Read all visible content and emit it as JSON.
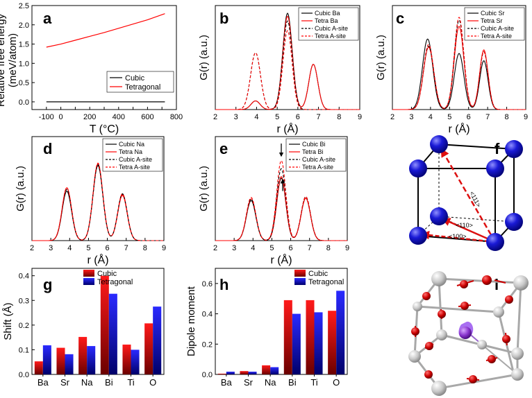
{
  "chart_data": [
    {
      "panel": "a",
      "type": "line",
      "xlabel": "T (°C)",
      "ylabel": "Relative free energy (meV/atom)",
      "ylabel_lines": [
        "Relative free energy",
        "(meV/atom)"
      ],
      "xlim": [
        -200,
        800
      ],
      "ylim": [
        -0.2,
        2.5
      ],
      "xticks": [
        -200,
        -100,
        0,
        100,
        200,
        300,
        400,
        500,
        600,
        700,
        800
      ],
      "xtick_labels": [
        "",
        "-100",
        "0",
        "200",
        "400",
        "600",
        "800"
      ],
      "xtick_label_values": [
        -200,
        -100,
        0,
        200,
        400,
        600,
        800
      ],
      "yticks": [
        0.0,
        0.5,
        1.0,
        1.5,
        2.0,
        2.5
      ],
      "ytick_labels": [
        "0.0",
        "0.5",
        "1.0",
        "1.5",
        "2.0",
        "2.5"
      ],
      "legend_position": "bottom-right",
      "series": [
        {
          "name": "Cubic",
          "color": "#000000",
          "dash": "solid",
          "x": [
            -100,
            0,
            100,
            200,
            300,
            400,
            500,
            600,
            720
          ],
          "y": [
            0,
            0,
            0,
            0,
            0,
            0,
            0,
            0,
            0
          ]
        },
        {
          "name": "Tetragonal",
          "color": "#ff0000",
          "dash": "solid",
          "x": [
            -100,
            0,
            100,
            200,
            300,
            400,
            500,
            600,
            720
          ],
          "y": [
            1.42,
            1.5,
            1.6,
            1.7,
            1.8,
            1.91,
            2.02,
            2.13,
            2.29
          ]
        }
      ]
    },
    {
      "panel": "b",
      "type": "line",
      "xlabel": "r (Å)",
      "ylabel": "G(r) (a.u.)",
      "xlim": [
        2,
        9
      ],
      "ylim": [
        0,
        1.08
      ],
      "xticks": [
        2,
        3,
        4,
        5,
        6,
        7,
        8,
        9
      ],
      "legend_position": "top-right",
      "series": [
        {
          "name": "Cubic Ba",
          "color": "#000000",
          "dash": "solid",
          "peaks": [
            [
              3.95,
              0.09,
              0.22
            ],
            [
              5.5,
              1.0,
              0.23
            ],
            [
              6.75,
              0.47,
              0.22
            ]
          ]
        },
        {
          "name": "Tetra Ba",
          "color": "#ff0000",
          "dash": "solid",
          "peaks": [
            [
              3.95,
              0.09,
              0.22
            ],
            [
              5.5,
              0.97,
              0.23
            ],
            [
              6.75,
              0.47,
              0.22
            ]
          ]
        },
        {
          "name": "Cubic A-site",
          "color": "#000000",
          "dash": "dashed",
          "peaks": [
            [
              3.95,
              0.59,
              0.24
            ],
            [
              5.5,
              0.92,
              0.23
            ]
          ]
        },
        {
          "name": "Tetra A-site",
          "color": "#ff0000",
          "dash": "dashed",
          "peaks": [
            [
              3.95,
              0.59,
              0.24
            ],
            [
              5.5,
              0.82,
              0.22
            ]
          ]
        }
      ]
    },
    {
      "panel": "c",
      "type": "line",
      "xlabel": "r (Å)",
      "ylabel": "G(r) (a.u.)",
      "xlim": [
        2,
        9
      ],
      "ylim": [
        0,
        1.15
      ],
      "xticks": [
        2,
        3,
        4,
        5,
        6,
        7,
        8,
        9
      ],
      "legend_position": "top-right",
      "series": [
        {
          "name": "Cubic Sr",
          "color": "#000000",
          "dash": "solid",
          "peaks": [
            [
              3.85,
              0.78,
              0.27
            ],
            [
              5.5,
              0.62,
              0.25
            ],
            [
              6.8,
              0.54,
              0.22
            ]
          ]
        },
        {
          "name": "Tetra Sr",
          "color": "#ff0000",
          "dash": "solid",
          "peaks": [
            [
              3.9,
              0.69,
              0.27
            ],
            [
              5.5,
              0.92,
              0.25
            ],
            [
              6.8,
              0.66,
              0.22
            ]
          ]
        },
        {
          "name": "Cubic A-site",
          "color": "#000000",
          "dash": "dashed",
          "peaks": [
            [
              3.9,
              0.7,
              0.27
            ],
            [
              5.5,
              0.99,
              0.25
            ],
            [
              6.8,
              0.64,
              0.22
            ]
          ]
        },
        {
          "name": "Tetra A-site",
          "color": "#ff0000",
          "dash": "dashed",
          "peaks": [
            [
              3.9,
              0.72,
              0.27
            ],
            [
              5.5,
              1.02,
              0.25
            ],
            [
              6.8,
              0.64,
              0.22
            ]
          ]
        }
      ]
    },
    {
      "panel": "d",
      "type": "line",
      "xlabel": "r (Å)",
      "ylabel": "G(r) (a.u.)",
      "xlim": [
        2,
        9
      ],
      "ylim": [
        0,
        1.22
      ],
      "xticks": [
        2,
        3,
        4,
        5,
        6,
        7,
        8,
        9
      ],
      "legend_position": "top-right",
      "series": [
        {
          "name": "Cubic Na",
          "color": "#000000",
          "dash": "solid",
          "peaks": [
            [
              3.85,
              0.58,
              0.25
            ],
            [
              5.5,
              0.88,
              0.26
            ],
            [
              6.8,
              0.54,
              0.25
            ]
          ]
        },
        {
          "name": "Tetra Na",
          "color": "#ff0000",
          "dash": "solid",
          "peaks": [
            [
              3.85,
              0.62,
              0.25
            ],
            [
              5.5,
              0.9,
              0.26
            ],
            [
              6.8,
              0.53,
              0.25
            ]
          ]
        },
        {
          "name": "Cubic A-site",
          "color": "#000000",
          "dash": "dashed",
          "peaks": [
            [
              3.85,
              0.6,
              0.25
            ],
            [
              5.5,
              0.89,
              0.26
            ],
            [
              6.8,
              0.55,
              0.25
            ]
          ]
        },
        {
          "name": "Tetra A-site",
          "color": "#ff0000",
          "dash": "dashed",
          "peaks": [
            [
              3.85,
              0.62,
              0.25
            ],
            [
              5.5,
              0.91,
              0.26
            ],
            [
              6.8,
              0.55,
              0.25
            ]
          ]
        }
      ]
    },
    {
      "panel": "e",
      "type": "line",
      "xlabel": "r (Å)",
      "ylabel": "G(r) (a.u.)",
      "xlim": [
        2,
        9
      ],
      "ylim": [
        0,
        1.3
      ],
      "xticks": [
        2,
        3,
        4,
        5,
        6,
        7,
        8,
        9
      ],
      "legend_position": "top-right",
      "annotations": [
        "down arrow above Tetra A-site peak near 5.5 Å",
        "up arrow below peak near 5.5 Å"
      ],
      "series": [
        {
          "name": "Cubic Bi",
          "color": "#000000",
          "dash": "solid",
          "peaks": [
            [
              3.9,
              0.5,
              0.25
            ],
            [
              5.5,
              0.78,
              0.24
            ],
            [
              6.8,
              0.53,
              0.25
            ]
          ]
        },
        {
          "name": "Tetra Bi",
          "color": "#ff0000",
          "dash": "solid",
          "peaks": [
            [
              3.9,
              0.52,
              0.25
            ],
            [
              5.5,
              0.8,
              0.24
            ],
            [
              6.8,
              0.53,
              0.25
            ]
          ]
        },
        {
          "name": "Cubic A-site",
          "color": "#000000",
          "dash": "dashed",
          "peaks": [
            [
              3.9,
              0.52,
              0.25
            ],
            [
              5.5,
              0.9,
              0.24
            ],
            [
              6.8,
              0.55,
              0.25
            ]
          ]
        },
        {
          "name": "Tetra A-site",
          "color": "#ff0000",
          "dash": "dashed",
          "peaks": [
            [
              3.9,
              0.54,
              0.25
            ],
            [
              5.5,
              1.0,
              0.24
            ],
            [
              6.8,
              0.55,
              0.25
            ]
          ]
        }
      ]
    },
    {
      "panel": "g",
      "type": "bar",
      "ylabel": "Shift (Å)",
      "categories": [
        "Ba",
        "Sr",
        "Na",
        "Bi",
        "Ti",
        "O"
      ],
      "ylim": [
        0,
        0.43
      ],
      "yticks": [
        0.0,
        0.1,
        0.2,
        0.3,
        0.4
      ],
      "ytick_labels": [
        "0.0",
        "0.1",
        "0.2",
        "0.3",
        "0.4"
      ],
      "legend_position": "top-center",
      "series": [
        {
          "name": "Cubic",
          "color": "#dd0000",
          "values": [
            0.053,
            0.108,
            0.152,
            0.4,
            0.121,
            0.207
          ]
        },
        {
          "name": "Tetragonal",
          "color": "#1a1aff",
          "values": [
            0.118,
            0.082,
            0.115,
            0.327,
            0.1,
            0.275
          ]
        }
      ]
    },
    {
      "panel": "h",
      "type": "bar",
      "ylabel": "Dipole moment",
      "categories": [
        "Ba",
        "Sr",
        "Na",
        "Bi",
        "Ti",
        "O"
      ],
      "ylim": [
        0,
        0.7
      ],
      "yticks": [
        0.0,
        0.2,
        0.4,
        0.6
      ],
      "ytick_labels": [
        "0.0",
        "0.2",
        "0.4",
        "0.6"
      ],
      "legend_position": "top-right",
      "series": [
        {
          "name": "Cubic",
          "color": "#dd0000",
          "values": [
            0.005,
            0.022,
            0.06,
            0.49,
            0.49,
            0.42
          ]
        },
        {
          "name": "Tetragonal",
          "color": "#1a1aff",
          "values": [
            0.018,
            0.018,
            0.048,
            0.4,
            0.41,
            0.552
          ]
        }
      ]
    }
  ],
  "diagram_f": {
    "panel": "f",
    "atom_color": "#1a1ad6",
    "arrow_color": "#dd1010",
    "labels": [
      "<111>",
      "<110>",
      "<100>"
    ]
  },
  "diagram_i": {
    "panel": "i",
    "atom_colors": {
      "corner": "#c8c8c8",
      "oxygen": "#cc0000",
      "center": "#8833cc"
    }
  }
}
